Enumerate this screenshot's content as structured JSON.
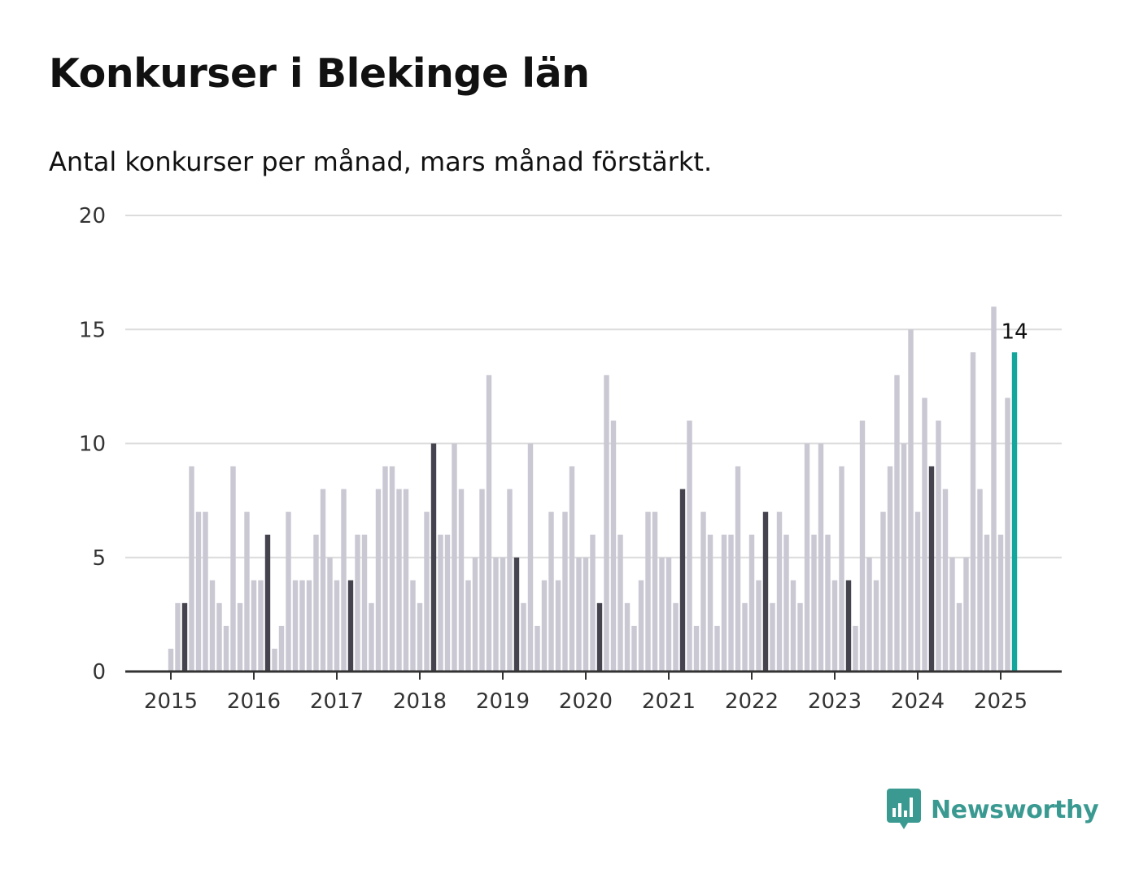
{
  "title": "Konkurser i Blekinge län",
  "subtitle": "Antal konkurser per månad, mars månad förstärkt.",
  "logo": {
    "text": "Newsworthy",
    "icon": "bar-chart-speech-bubble-icon"
  },
  "colors": {
    "bar_default": "#c9c8d3",
    "bar_march": "#45434e",
    "bar_latest": "#13a69c",
    "gridline": "#dcdcdc",
    "axis": "#333333",
    "logo": "#3a9a92"
  },
  "chart_data": {
    "type": "bar",
    "x_axis": "months, January 2015 – March 2025",
    "ylim": [
      0,
      20
    ],
    "yticks": [
      0,
      5,
      10,
      15,
      20
    ],
    "xticks": [
      "2015",
      "2016",
      "2017",
      "2018",
      "2019",
      "2020",
      "2021",
      "2022",
      "2023",
      "2024",
      "2025"
    ],
    "grid": true,
    "highlight": "March of each year (dark); latest month (teal)",
    "series": [
      {
        "values": [
          1,
          3,
          3,
          9,
          7,
          7,
          4,
          3,
          2,
          9,
          3,
          7,
          4,
          4,
          6,
          1,
          2,
          7,
          4,
          4,
          4,
          6,
          8,
          5,
          4,
          8,
          4,
          6,
          6,
          3,
          8,
          9,
          9,
          8,
          8,
          4,
          3,
          7,
          10,
          6,
          6,
          10,
          8,
          4,
          5,
          8,
          13,
          5,
          5,
          8,
          5,
          3,
          10,
          2,
          4,
          7,
          4,
          7,
          9,
          5,
          5,
          6,
          3,
          13,
          11,
          6,
          3,
          2,
          4,
          7,
          7,
          5,
          5,
          3,
          8,
          11,
          2,
          7,
          6,
          2,
          6,
          6,
          9,
          3,
          6,
          4,
          7,
          3,
          7,
          6,
          4,
          3,
          10,
          6,
          10,
          6,
          4,
          9,
          4,
          2,
          11,
          5,
          4,
          7,
          9,
          13,
          10,
          15,
          7,
          12,
          9,
          11,
          8,
          5,
          3,
          5,
          14,
          8,
          6,
          16,
          6,
          12,
          14
        ]
      }
    ],
    "annotations": [
      {
        "label": "14",
        "month": "2025-03"
      }
    ]
  }
}
